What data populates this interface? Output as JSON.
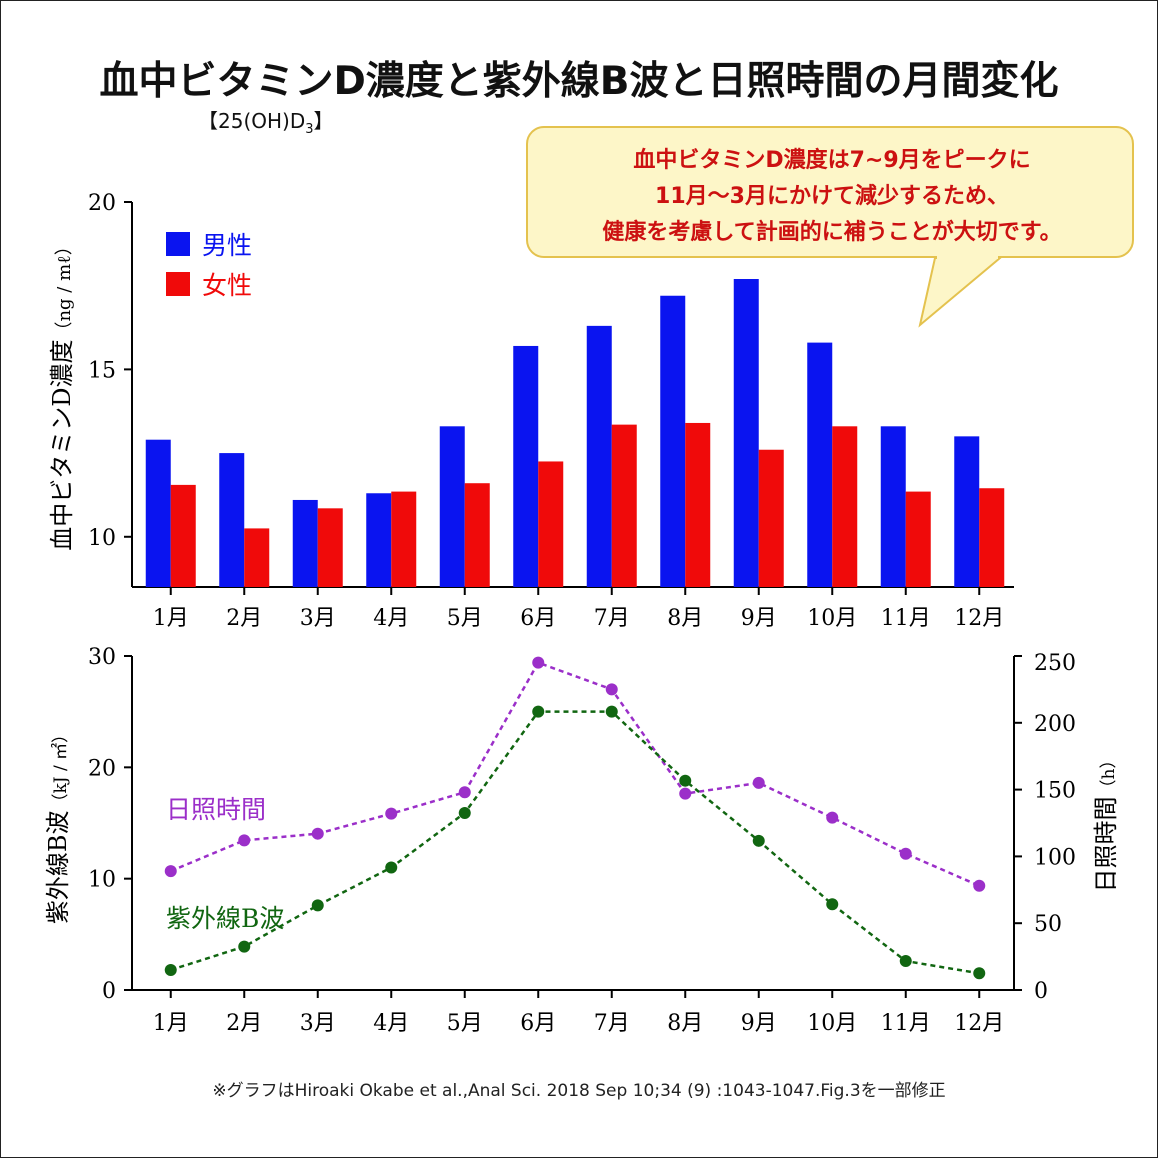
{
  "title": "血中ビタミンD濃度と紫外線B波と日照時間の月間変化",
  "subtitle_main": "【25(OH)D",
  "subtitle_sub": "3",
  "subtitle_end": "】",
  "callout": {
    "lines": [
      "血中ビタミンD濃度は7~9月をピークに",
      "11月〜3月にかけて減少するため、",
      "健康を考慮して計画的に補うことが大切です。"
    ]
  },
  "footnote": "※グラフはHiroaki Okabe et al.,Anal Sci. 2018 Sep 10;34 (9) :1043-1047.Fig.3を一部修正",
  "colors": {
    "male": "#0a14f0",
    "female": "#f00a0a",
    "sunshine": "#9b2fc9",
    "uvb": "#116611",
    "callout_text": "#cc1111"
  },
  "chart_data": [
    {
      "type": "bar",
      "categories": [
        "1月",
        "2月",
        "3月",
        "4月",
        "5月",
        "6月",
        "7月",
        "8月",
        "9月",
        "10月",
        "11月",
        "12月"
      ],
      "series": [
        {
          "name": "男性",
          "values": [
            12.9,
            12.5,
            11.1,
            11.3,
            13.3,
            15.7,
            16.3,
            17.2,
            17.7,
            15.8,
            13.3,
            13.0
          ]
        },
        {
          "name": "女性",
          "values": [
            11.55,
            10.25,
            10.85,
            11.35,
            11.6,
            12.25,
            13.35,
            13.4,
            12.6,
            13.3,
            11.35,
            11.45
          ]
        }
      ],
      "ylabel": "血中ビタミンD濃度",
      "ylabel_unit": "（ng / mℓ）",
      "ylim": [
        8.5,
        20
      ],
      "yticks": [
        10,
        15,
        20
      ],
      "legend": "top-left"
    },
    {
      "type": "line",
      "categories": [
        "1月",
        "2月",
        "3月",
        "4月",
        "5月",
        "6月",
        "7月",
        "8月",
        "9月",
        "10月",
        "11月",
        "12月"
      ],
      "series": [
        {
          "name": "日照時間",
          "axis": "right",
          "values": [
            89,
            112,
            117,
            132,
            148,
            245,
            225,
            147,
            155,
            129,
            102,
            78
          ]
        },
        {
          "name": "紫外線B波",
          "axis": "left",
          "values": [
            1.8,
            3.9,
            7.6,
            11.0,
            15.9,
            25.0,
            25.0,
            18.8,
            13.4,
            7.7,
            2.6,
            1.5
          ]
        }
      ],
      "ylabel_left": "紫外線B波",
      "ylabel_left_unit": "（kJ / ㎡）",
      "ylim_left": [
        0,
        30
      ],
      "yticks_left": [
        0,
        10,
        20,
        30
      ],
      "ylabel_right": "日照時間",
      "ylabel_right_unit": "（h）",
      "ylim_right": [
        0,
        250
      ],
      "yticks_right": [
        0,
        50,
        100,
        150,
        200,
        250
      ]
    }
  ]
}
